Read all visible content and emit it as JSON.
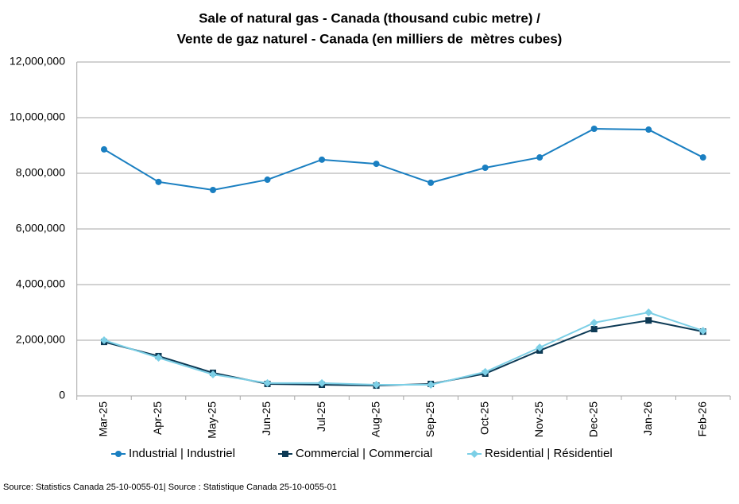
{
  "chart_data": {
    "type": "line",
    "title": [
      "Sale of natural gas - Canada (thousand cubic metre) /",
      "Vente de gaz naturel - Canada (en milliers de  mètres cubes)"
    ],
    "source": "Source: Statistics Canada 25-10-0055-01| Source : Statistique Canada 25-10-0055-01",
    "categories": [
      "Mar-25",
      "Apr-25",
      "May-25",
      "Jun-25",
      "Jul-25",
      "Aug-25",
      "Sep-25",
      "Oct-25",
      "Nov-25",
      "Dec-25",
      "Jan-26",
      "Feb-26"
    ],
    "series": [
      {
        "name": "Industrial | Industriel",
        "color": "#1a7fc1",
        "marker": "circle",
        "values": [
          8860000,
          7690000,
          7400000,
          7770000,
          8490000,
          8340000,
          7660000,
          8200000,
          8570000,
          9600000,
          9570000,
          8570000
        ]
      },
      {
        "name": "Commercial | Commercial",
        "color": "#0d3a55",
        "marker": "square",
        "values": [
          1940000,
          1430000,
          830000,
          430000,
          400000,
          370000,
          430000,
          800000,
          1630000,
          2400000,
          2710000,
          2310000
        ]
      },
      {
        "name": "Residential | Résidentiel",
        "color": "#7ccfe6",
        "marker": "diamond",
        "values": [
          2000000,
          1370000,
          770000,
          460000,
          460000,
          400000,
          400000,
          860000,
          1740000,
          2630000,
          3000000,
          2340000
        ]
      }
    ],
    "ylim": [
      0,
      12000000
    ],
    "yticks": [
      0,
      {
        "value": 2000000,
        "label": "2,000,000"
      },
      {
        "value": 4000000,
        "label": "4,000,000"
      },
      {
        "value": 6000000,
        "label": "6,000,000"
      },
      {
        "value": 8000000,
        "label": "8,000,000"
      },
      {
        "value": 10000000,
        "label": "10,000,000"
      },
      {
        "value": 12000000,
        "label": "12,000,000"
      }
    ],
    "grid": true,
    "legend": "bottom"
  }
}
